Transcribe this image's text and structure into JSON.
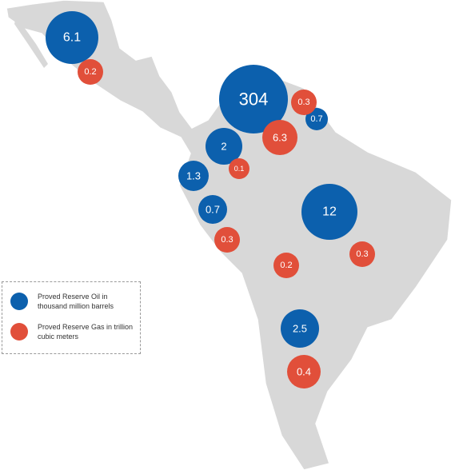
{
  "legend": [
    {
      "name": "Proved Reserve Oil in thousand million barrels",
      "color": "#0c60ad"
    },
    {
      "name": "Proved Reserve Gas  in trillion cubic meters",
      "color": "#e14f3a"
    }
  ],
  "oil": [
    6.1,
    304,
    0.7,
    2,
    1.3,
    0.7,
    12,
    2.5
  ],
  "gas": [
    0.2,
    0.3,
    6.3,
    0.1,
    0.3,
    0.2,
    0.3,
    0.4
  ]
}
